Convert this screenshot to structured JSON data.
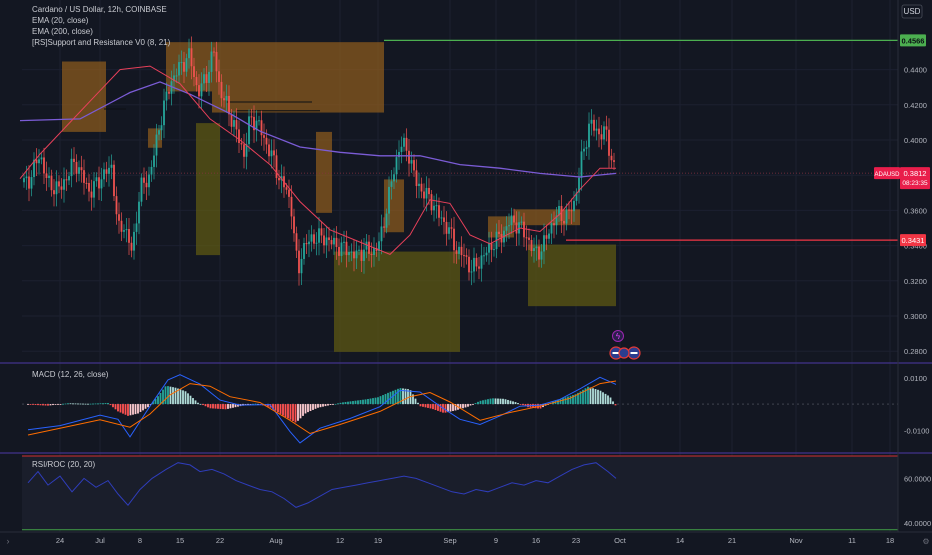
{
  "currency": "USD",
  "main": {
    "legend": [
      "Cardano / US Dollar, 12h, COINBASE",
      "EMA (20, close)",
      "EMA (200, close)",
      "[RS]Support and Resistance V0 (8, 21)"
    ],
    "price_axis": [
      "0.4400",
      "0.4200",
      "0.4000",
      "0.3800",
      "0.3600",
      "0.3400",
      "0.3200",
      "0.3000",
      "0.2800"
    ],
    "badges": {
      "top_level": "0.4566",
      "symbol": "ADAUSD",
      "last_price": "0.3812",
      "countdown": "08:23:35",
      "support_level": "0.3431"
    }
  },
  "macd": {
    "title": "MACD (12, 26, close)",
    "axis": [
      "0.0100",
      "-0.0100"
    ]
  },
  "rsi": {
    "title": "RSI/ROC (20, 20)",
    "axis": [
      "60.0000",
      "40.0000"
    ]
  },
  "time_axis": [
    "24",
    "Jul",
    "8",
    "15",
    "22",
    "Aug",
    "12",
    "19",
    "Sep",
    "9",
    "16",
    "23",
    "Oct",
    "14",
    "21",
    "Nov",
    "11",
    "18"
  ],
  "colors": {
    "background": "#131722",
    "up": "#26a69a",
    "down": "#ef5350",
    "ema20": "#e8405a",
    "ema200": "#7b5cd6",
    "resistance_zone": "#8a5a1e",
    "support_zone": "#5f5a12",
    "top_line": "#4caf50",
    "support_line": "#f23645",
    "rsi_line": "#2f3dba",
    "macd_line": "#2962ff",
    "signal_line": "#ff6d00"
  },
  "chart_data": {
    "type": "candlestick",
    "symbol": "ADAUSD",
    "exchange": "COINBASE",
    "interval": "12h",
    "price_range": [
      0.275,
      0.4625
    ],
    "date_range": [
      "2024-06-19",
      "2024-11-22"
    ],
    "last_price": 0.3812,
    "horizontal_levels": [
      0.4566,
      0.3431
    ],
    "ema20": [
      [
        20,
        0.378
      ],
      [
        40,
        0.392
      ],
      [
        70,
        0.41
      ],
      [
        100,
        0.428
      ],
      [
        120,
        0.44
      ],
      [
        150,
        0.442
      ],
      [
        180,
        0.432
      ],
      [
        210,
        0.412
      ],
      [
        240,
        0.4
      ],
      [
        270,
        0.386
      ],
      [
        300,
        0.365
      ],
      [
        330,
        0.349
      ],
      [
        360,
        0.342
      ],
      [
        390,
        0.335
      ],
      [
        410,
        0.346
      ],
      [
        430,
        0.366
      ],
      [
        450,
        0.364
      ],
      [
        470,
        0.346
      ],
      [
        490,
        0.341
      ],
      [
        520,
        0.35
      ],
      [
        540,
        0.348
      ],
      [
        560,
        0.358
      ],
      [
        580,
        0.372
      ],
      [
        600,
        0.384
      ],
      [
        616,
        0.384
      ]
    ],
    "ema200": [
      [
        20,
        0.411
      ],
      [
        80,
        0.412
      ],
      [
        130,
        0.427
      ],
      [
        160,
        0.433
      ],
      [
        190,
        0.426
      ],
      [
        230,
        0.415
      ],
      [
        260,
        0.405
      ],
      [
        300,
        0.396
      ],
      [
        340,
        0.393
      ],
      [
        380,
        0.391
      ],
      [
        420,
        0.391
      ],
      [
        460,
        0.386
      ],
      [
        500,
        0.384
      ],
      [
        540,
        0.381
      ],
      [
        580,
        0.379
      ],
      [
        616,
        0.381
      ]
    ],
    "candle_anchors": [
      [
        28,
        0.376
      ],
      [
        40,
        0.392
      ],
      [
        48,
        0.375
      ],
      [
        60,
        0.372
      ],
      [
        75,
        0.388
      ],
      [
        90,
        0.37
      ],
      [
        100,
        0.378
      ],
      [
        112,
        0.385
      ],
      [
        118,
        0.348
      ],
      [
        124,
        0.352
      ],
      [
        132,
        0.336
      ],
      [
        140,
        0.372
      ],
      [
        150,
        0.38
      ],
      [
        160,
        0.41
      ],
      [
        170,
        0.432
      ],
      [
        180,
        0.442
      ],
      [
        190,
        0.448
      ],
      [
        198,
        0.426
      ],
      [
        206,
        0.436
      ],
      [
        214,
        0.45
      ],
      [
        220,
        0.428
      ],
      [
        228,
        0.418
      ],
      [
        236,
        0.405
      ],
      [
        244,
        0.392
      ],
      [
        250,
        0.412
      ],
      [
        258,
        0.41
      ],
      [
        264,
        0.4
      ],
      [
        270,
        0.394
      ],
      [
        278,
        0.38
      ],
      [
        286,
        0.372
      ],
      [
        292,
        0.36
      ],
      [
        298,
        0.322
      ],
      [
        302,
        0.338
      ],
      [
        308,
        0.342
      ],
      [
        316,
        0.345
      ],
      [
        326,
        0.344
      ],
      [
        336,
        0.34
      ],
      [
        346,
        0.338
      ],
      [
        356,
        0.334
      ],
      [
        364,
        0.338
      ],
      [
        372,
        0.336
      ],
      [
        380,
        0.342
      ],
      [
        390,
        0.372
      ],
      [
        400,
        0.398
      ],
      [
        408,
        0.394
      ],
      [
        416,
        0.376
      ],
      [
        424,
        0.37
      ],
      [
        432,
        0.365
      ],
      [
        440,
        0.356
      ],
      [
        448,
        0.35
      ],
      [
        456,
        0.338
      ],
      [
        464,
        0.334
      ],
      [
        472,
        0.326
      ],
      [
        478,
        0.33
      ],
      [
        486,
        0.336
      ],
      [
        494,
        0.342
      ],
      [
        502,
        0.346
      ],
      [
        510,
        0.354
      ],
      [
        518,
        0.352
      ],
      [
        526,
        0.346
      ],
      [
        534,
        0.336
      ],
      [
        542,
        0.338
      ],
      [
        550,
        0.35
      ],
      [
        558,
        0.358
      ],
      [
        566,
        0.356
      ],
      [
        574,
        0.364
      ],
      [
        582,
        0.39
      ],
      [
        590,
        0.41
      ],
      [
        598,
        0.404
      ],
      [
        606,
        0.404
      ],
      [
        612,
        0.388
      ],
      [
        616,
        0.381
      ]
    ],
    "resistance_zones": [
      [
        62,
        106,
        0.4446,
        0.4046
      ],
      [
        148,
        162,
        0.4066,
        0.3956
      ],
      [
        166,
        212,
        0.4556,
        0.4276
      ],
      [
        212,
        384,
        0.4556,
        0.4156
      ],
      [
        316,
        332,
        0.4046,
        0.3586
      ],
      [
        384,
        404,
        0.3776,
        0.3476
      ],
      [
        488,
        514,
        0.3566,
        0.3446
      ],
      [
        514,
        580,
        0.3606,
        0.3516
      ]
    ],
    "support_zones": [
      [
        196,
        220,
        0.4096,
        0.3346
      ],
      [
        334,
        384,
        0.3366,
        0.2796
      ],
      [
        384,
        460,
        0.3366,
        0.2796
      ],
      [
        528,
        616,
        0.3406,
        0.3056
      ]
    ],
    "macd_range": [
      -0.0175,
      0.0145
    ],
    "macd_histogram": [
      [
        28,
        -0.0002
      ],
      [
        48,
        -0.0006
      ],
      [
        68,
        0.0003
      ],
      [
        88,
        0.0001
      ],
      [
        108,
        0.0004
      ],
      [
        118,
        -0.0028
      ],
      [
        128,
        -0.0045
      ],
      [
        138,
        -0.0036
      ],
      [
        148,
        -0.0012
      ],
      [
        158,
        0.003
      ],
      [
        166,
        0.007
      ],
      [
        176,
        0.0062
      ],
      [
        186,
        0.0048
      ],
      [
        198,
        0.0005
      ],
      [
        210,
        -0.0016
      ],
      [
        226,
        -0.002
      ],
      [
        240,
        -0.0008
      ],
      [
        256,
        0.0002
      ],
      [
        270,
        -0.0012
      ],
      [
        284,
        -0.0046
      ],
      [
        296,
        -0.0071
      ],
      [
        306,
        -0.0034
      ],
      [
        318,
        -0.0014
      ],
      [
        330,
        -0.0004
      ],
      [
        342,
        0.0006
      ],
      [
        354,
        0.0012
      ],
      [
        366,
        0.0018
      ],
      [
        378,
        0.0026
      ],
      [
        390,
        0.0046
      ],
      [
        400,
        0.0061
      ],
      [
        410,
        0.0056
      ],
      [
        420,
        -0.0008
      ],
      [
        432,
        -0.0018
      ],
      [
        444,
        -0.0034
      ],
      [
        456,
        -0.0024
      ],
      [
        468,
        -0.001
      ],
      [
        480,
        0.0012
      ],
      [
        492,
        0.0022
      ],
      [
        504,
        0.002
      ],
      [
        516,
        0.0007
      ],
      [
        528,
        -0.0012
      ],
      [
        540,
        -0.0018
      ],
      [
        552,
        0.0008
      ],
      [
        564,
        0.0024
      ],
      [
        576,
        0.0038
      ],
      [
        588,
        0.0066
      ],
      [
        600,
        0.0052
      ],
      [
        610,
        0.0028
      ],
      [
        616,
        -0.0008
      ]
    ],
    "macd_line": [
      [
        28,
        -0.0098
      ],
      [
        60,
        -0.0082
      ],
      [
        100,
        -0.0042
      ],
      [
        118,
        -0.0058
      ],
      [
        130,
        -0.0125
      ],
      [
        150,
        -0.0008
      ],
      [
        168,
        0.0092
      ],
      [
        180,
        0.0112
      ],
      [
        200,
        0.0076
      ],
      [
        220,
        0.0015
      ],
      [
        240,
        -0.0004
      ],
      [
        270,
        -0.0002
      ],
      [
        290,
        -0.0105
      ],
      [
        300,
        -0.0148
      ],
      [
        320,
        -0.0092
      ],
      [
        350,
        -0.0055
      ],
      [
        380,
        -0.001
      ],
      [
        400,
        0.0052
      ],
      [
        420,
        0.0046
      ],
      [
        440,
        -0.0008
      ],
      [
        460,
        -0.0058
      ],
      [
        480,
        -0.0078
      ],
      [
        500,
        -0.0045
      ],
      [
        520,
        -0.0008
      ],
      [
        540,
        -0.0004
      ],
      [
        560,
        0.0018
      ],
      [
        580,
        0.0058
      ],
      [
        600,
        0.0102
      ],
      [
        616,
        0.0075
      ]
    ],
    "signal_line": [
      [
        28,
        -0.0118
      ],
      [
        60,
        -0.0092
      ],
      [
        100,
        -0.006
      ],
      [
        130,
        -0.0088
      ],
      [
        150,
        -0.0038
      ],
      [
        170,
        0.0035
      ],
      [
        190,
        0.0078
      ],
      [
        210,
        0.0068
      ],
      [
        230,
        0.0028
      ],
      [
        260,
        0.0006
      ],
      [
        290,
        -0.0062
      ],
      [
        310,
        -0.0112
      ],
      [
        340,
        -0.0078
      ],
      [
        380,
        -0.0028
      ],
      [
        410,
        0.0028
      ],
      [
        430,
        0.0044
      ],
      [
        450,
        0.0008
      ],
      [
        480,
        -0.0062
      ],
      [
        510,
        -0.0032
      ],
      [
        540,
        -0.0008
      ],
      [
        570,
        0.0022
      ],
      [
        600,
        0.0078
      ],
      [
        616,
        0.0088
      ]
    ],
    "rsi_range": [
      36,
      70
    ],
    "rsi_levels": [
      70,
      37
    ],
    "rsi_line": [
      [
        28,
        58
      ],
      [
        38,
        63
      ],
      [
        48,
        57
      ],
      [
        60,
        61
      ],
      [
        72,
        54
      ],
      [
        84,
        60
      ],
      [
        96,
        56
      ],
      [
        108,
        59
      ],
      [
        118,
        53
      ],
      [
        128,
        48
      ],
      [
        140,
        55
      ],
      [
        152,
        60
      ],
      [
        166,
        64
      ],
      [
        178,
        67
      ],
      [
        190,
        66
      ],
      [
        200,
        63
      ],
      [
        212,
        64
      ],
      [
        224,
        62
      ],
      [
        236,
        59
      ],
      [
        248,
        57
      ],
      [
        260,
        55
      ],
      [
        272,
        54
      ],
      [
        284,
        51
      ],
      [
        296,
        47
      ],
      [
        308,
        49
      ],
      [
        320,
        52
      ],
      [
        332,
        55
      ],
      [
        344,
        56
      ],
      [
        356,
        57
      ],
      [
        368,
        58
      ],
      [
        380,
        59
      ],
      [
        392,
        60
      ],
      [
        404,
        61
      ],
      [
        416,
        60
      ],
      [
        428,
        58
      ],
      [
        440,
        56
      ],
      [
        452,
        54
      ],
      [
        464,
        53
      ],
      [
        476,
        55
      ],
      [
        488,
        54
      ],
      [
        500,
        56
      ],
      [
        512,
        58
      ],
      [
        524,
        57
      ],
      [
        536,
        59
      ],
      [
        548,
        58
      ],
      [
        560,
        61
      ],
      [
        572,
        64
      ],
      [
        584,
        66
      ],
      [
        596,
        67
      ],
      [
        608,
        63
      ],
      [
        616,
        60
      ]
    ]
  }
}
